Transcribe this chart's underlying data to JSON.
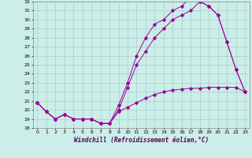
{
  "xlabel": "Windchill (Refroidissement éolien,°C)",
  "background_color": "#cceee8",
  "grid_color": "#aacccc",
  "line_color": "#990099",
  "ylim": [
    18,
    32
  ],
  "xlim": [
    -0.5,
    23.5
  ],
  "yticks": [
    18,
    19,
    20,
    21,
    22,
    23,
    24,
    25,
    26,
    27,
    28,
    29,
    30,
    31,
    32
  ],
  "xticks": [
    0,
    1,
    2,
    3,
    4,
    5,
    6,
    7,
    8,
    9,
    10,
    11,
    12,
    13,
    14,
    15,
    16,
    17,
    18,
    19,
    20,
    21,
    22,
    23
  ],
  "line1_x": [
    0,
    1,
    2,
    3,
    4,
    5,
    6,
    7,
    8,
    9,
    10,
    11,
    12,
    13,
    14,
    15,
    16,
    17,
    18,
    19,
    20,
    21,
    22,
    23
  ],
  "line1_y": [
    20.8,
    19.8,
    19.0,
    19.5,
    19.0,
    19.0,
    19.0,
    18.5,
    18.5,
    19.8,
    20.3,
    20.8,
    21.3,
    21.7,
    22.0,
    22.2,
    22.3,
    22.4,
    22.4,
    22.5,
    22.5,
    22.5,
    22.5,
    22.0
  ],
  "line2_x": [
    0,
    1,
    2,
    3,
    4,
    5,
    6,
    7,
    8,
    9,
    10,
    11,
    12,
    13,
    14,
    15,
    16,
    17,
    18,
    19,
    20,
    21,
    22,
    23
  ],
  "line2_y": [
    20.8,
    19.8,
    19.0,
    19.5,
    19.0,
    19.0,
    19.0,
    18.5,
    18.5,
    20.0,
    22.5,
    25.0,
    26.5,
    28.0,
    29.0,
    30.0,
    30.5,
    31.0,
    32.0,
    31.5,
    30.5,
    27.5,
    24.5,
    22.0
  ],
  "line3_x": [
    0,
    1,
    2,
    3,
    4,
    5,
    6,
    7,
    8,
    9,
    10,
    11,
    12,
    13,
    14,
    15,
    16,
    17,
    18,
    19,
    20,
    21,
    22,
    23
  ],
  "line3_y": [
    20.8,
    19.8,
    19.0,
    19.5,
    19.0,
    19.0,
    19.0,
    18.5,
    18.5,
    20.5,
    23.0,
    26.0,
    28.0,
    29.5,
    30.0,
    31.0,
    31.5,
    32.5,
    32.0,
    31.5,
    30.5,
    27.5,
    24.5,
    22.0
  ]
}
